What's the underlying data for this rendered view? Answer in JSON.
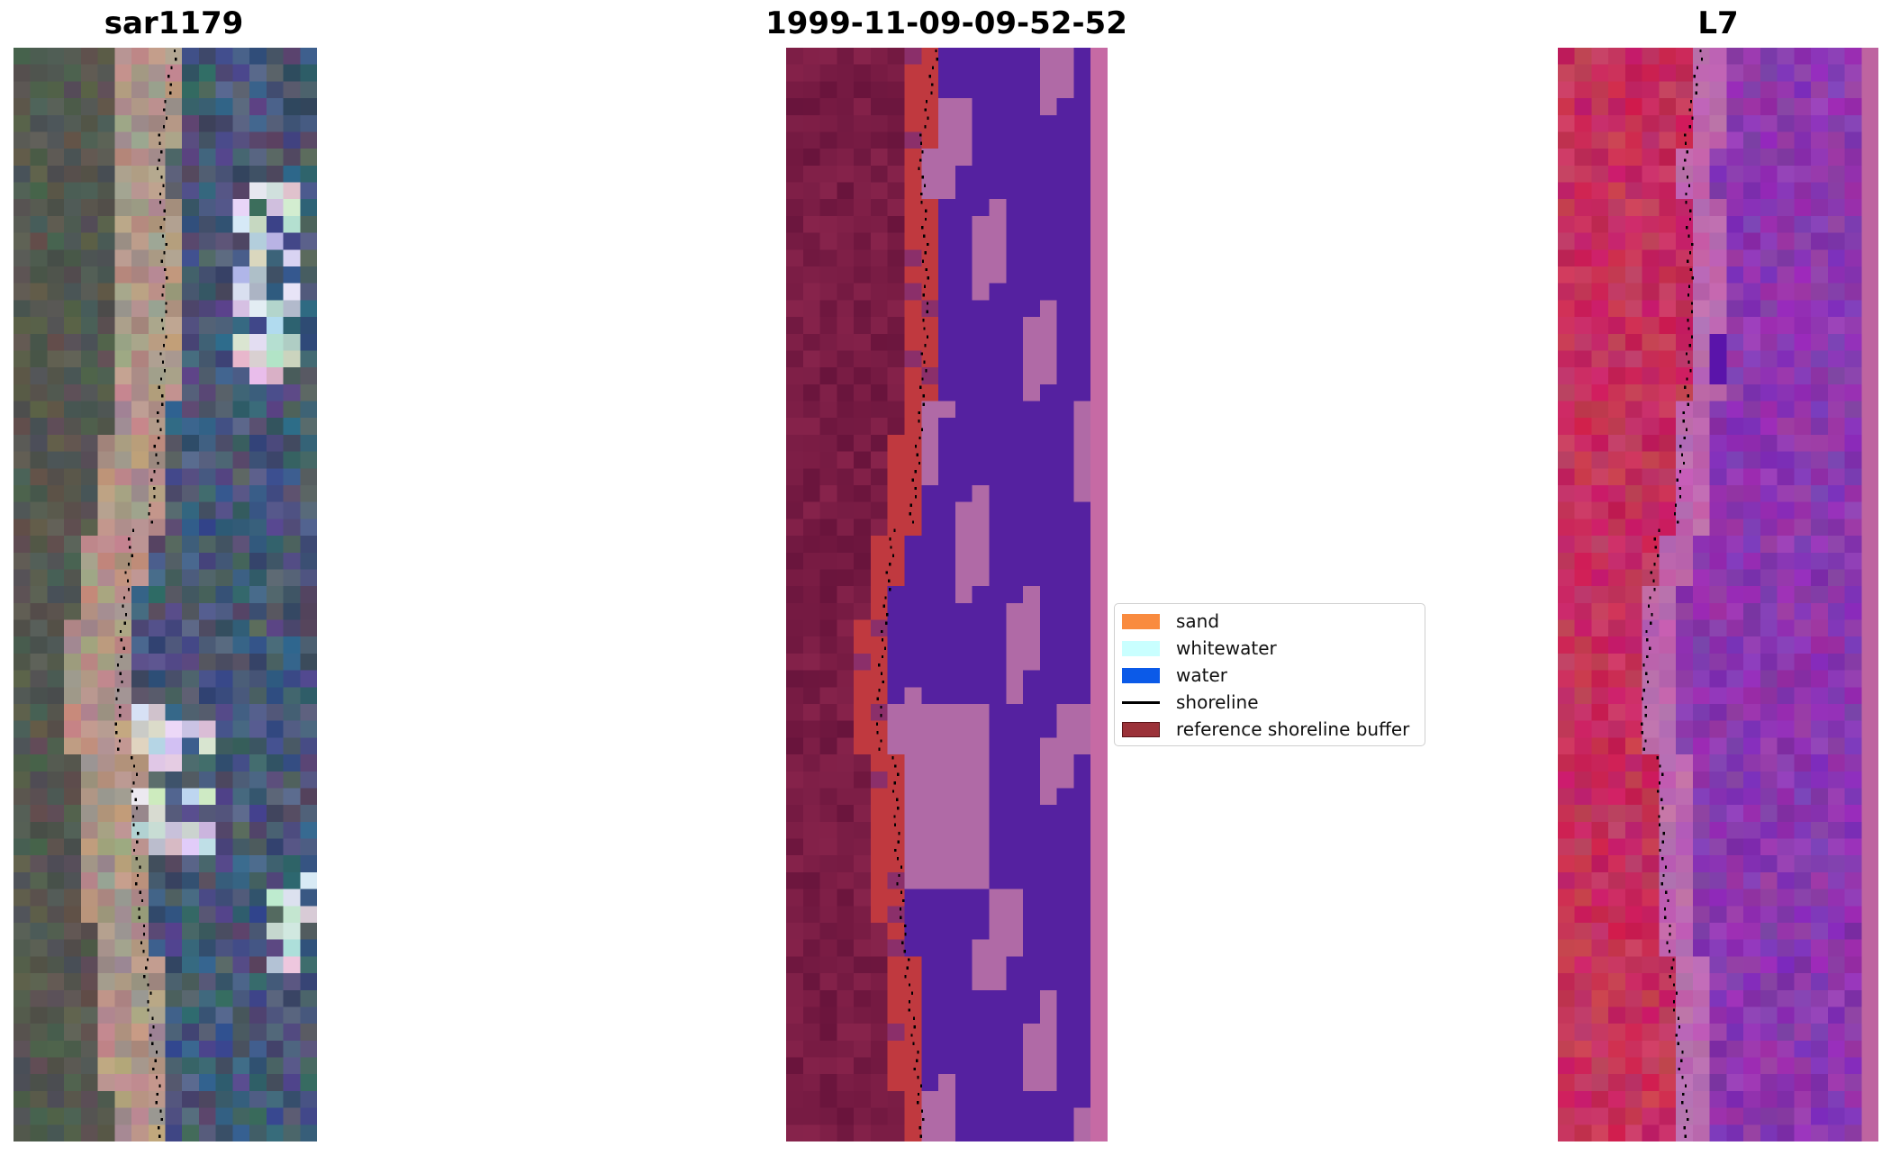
{
  "panels": [
    {
      "title": "sar1179",
      "kind": "rgb"
    },
    {
      "title": "1999-11-09-09-52-52",
      "kind": "classified"
    },
    {
      "title": "L7",
      "kind": "falsecolor"
    }
  ],
  "legend": {
    "items": [
      {
        "label": "sand",
        "color": "#f98b3f"
      },
      {
        "label": "whitewater",
        "color": "#c9ffff"
      },
      {
        "label": "water",
        "color": "#0b5ae8"
      },
      {
        "label": "shoreline",
        "color": "#000000"
      },
      {
        "label": "reference shoreline buffer",
        "color": "#9b3239"
      }
    ]
  },
  "colors": {
    "land_dark": "#6b1a48",
    "buffer_red": "#c0393f",
    "water_purple": "#5521a0",
    "whitewater_pink": "#b06aa6",
    "sea_pink": "#c66aa4",
    "l7_red": "#c01e49",
    "l7_purple": "#8d3aa6"
  }
}
